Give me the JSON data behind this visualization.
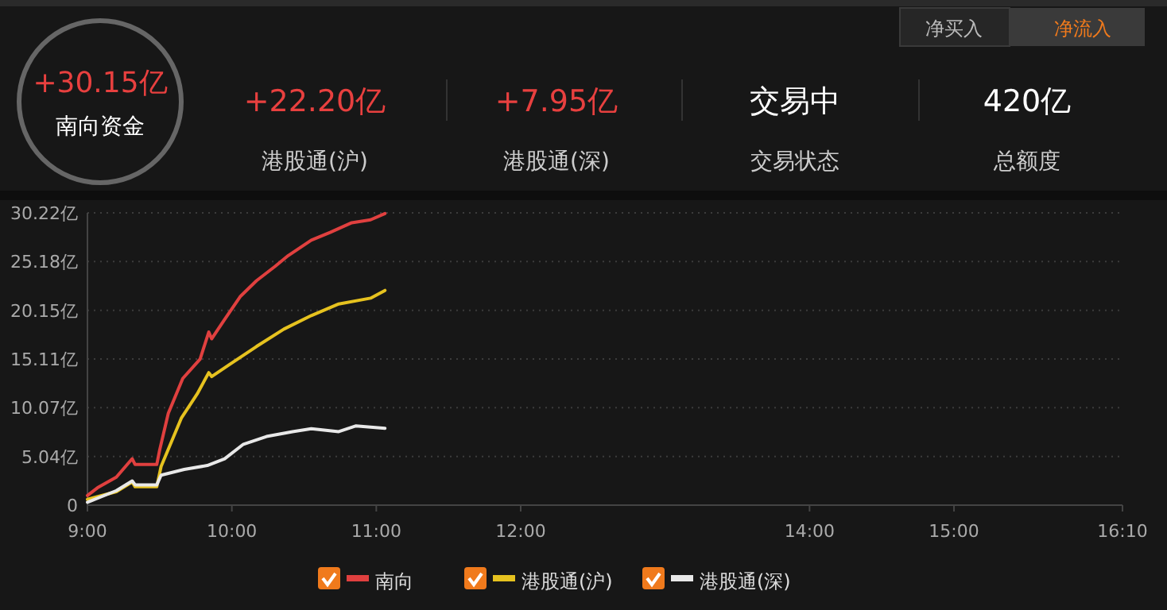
{
  "chart_data": {
    "type": "line",
    "xlim": [
      9,
      16.1667
    ],
    "xticks": [
      {
        "value": 9,
        "label": "9:00"
      },
      {
        "value": 10,
        "label": "10:00"
      },
      {
        "value": 11,
        "label": "11:00"
      },
      {
        "value": 12,
        "label": "12:00"
      },
      {
        "value": 14,
        "label": "14:00"
      },
      {
        "value": 15,
        "label": "15:00"
      },
      {
        "value": 16.1667,
        "label": "16:10"
      }
    ],
    "ylim": [
      0,
      30.22
    ],
    "yticks": [
      0,
      {
        "value": 5.04,
        "label": "5.04亿"
      },
      {
        "value": 10.07,
        "label": "10.07亿"
      },
      {
        "value": 15.11,
        "label": "15.11亿"
      },
      {
        "value": 20.15,
        "label": "20.15亿"
      },
      {
        "value": 25.18,
        "label": "25.18亿"
      },
      {
        "value": 30.22,
        "label": "30.22亿"
      }
    ],
    "grid": "y",
    "legend": "bottom",
    "marker": "none",
    "line_style": "solid",
    "series": [
      {
        "name": "南向",
        "color": "#e0403f",
        "x": [
          9.0,
          9.07,
          9.2,
          9.31,
          9.33,
          9.48,
          9.5,
          9.56,
          9.66,
          9.78,
          9.84,
          9.86,
          9.95,
          10.06,
          10.17,
          10.3,
          10.39,
          10.55,
          10.68,
          10.83,
          10.96,
          11.06
        ],
        "values": [
          1.0,
          1.8,
          2.9,
          4.8,
          4.2,
          4.2,
          5.7,
          9.5,
          13.1,
          15.1,
          17.9,
          17.2,
          19.2,
          21.6,
          23.2,
          24.7,
          25.8,
          27.4,
          28.2,
          29.2,
          29.5,
          30.15
        ]
      },
      {
        "name": "港股通(沪)",
        "color": "#e6c21f",
        "x": [
          9.0,
          9.2,
          9.31,
          9.33,
          9.48,
          9.51,
          9.65,
          9.76,
          9.84,
          9.86,
          9.98,
          10.17,
          10.36,
          10.55,
          10.74,
          10.96,
          11.06
        ],
        "values": [
          0.6,
          1.4,
          2.4,
          1.9,
          1.9,
          4.0,
          9.0,
          11.5,
          13.7,
          13.3,
          14.5,
          16.4,
          18.2,
          19.6,
          20.8,
          21.4,
          22.2
        ]
      },
      {
        "name": "港股通(深)",
        "color": "#e8e8e8",
        "x": [
          9.0,
          9.2,
          9.31,
          9.33,
          9.48,
          9.51,
          9.67,
          9.83,
          9.95,
          10.08,
          10.24,
          10.42,
          10.55,
          10.74,
          10.86,
          11.06
        ],
        "values": [
          0.3,
          1.5,
          2.5,
          2.1,
          2.1,
          3.1,
          3.7,
          4.1,
          4.8,
          6.3,
          7.1,
          7.6,
          7.9,
          7.6,
          8.2,
          7.95
        ]
      }
    ],
    "annotations": [
      "+30.15亿",
      "南向资金",
      "+22.20亿",
      "港股通(沪)",
      "+7.95亿",
      "港股通(深)",
      "交易中",
      "交易状态",
      "420亿",
      "总额度",
      "净买入",
      "净流入"
    ]
  }
}
